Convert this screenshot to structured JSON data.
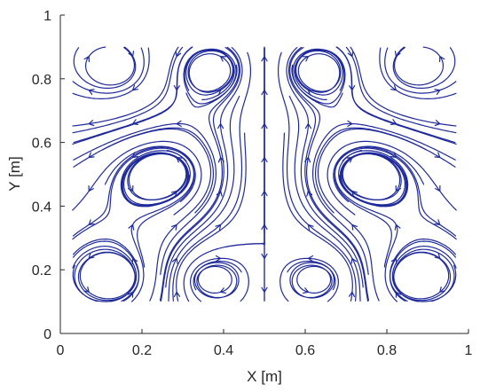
{
  "chart_data": {
    "type": "streamline",
    "title": "",
    "xlabel": "X [m]",
    "ylabel": "Y [m]",
    "xlim": [
      0,
      1
    ],
    "ylim": [
      0,
      1
    ],
    "xticks": [
      0,
      0.2,
      0.4,
      0.6,
      0.8,
      1
    ],
    "yticks": [
      0,
      0.2,
      0.4,
      0.6,
      0.8,
      1
    ],
    "xtick_labels": [
      "0",
      "0.2",
      "0.4",
      "0.6",
      "0.8",
      "1"
    ],
    "ytick_labels": [
      "0",
      "0.2",
      "0.4",
      "0.6",
      "0.8",
      "1"
    ],
    "grid": false,
    "box": "open",
    "color": "#1f2a9a",
    "field_extent": {
      "x": [
        0.03,
        0.97
      ],
      "y": [
        0.1,
        0.9
      ]
    },
    "vortices": [
      {
        "x": 0.13,
        "y": 0.83,
        "strength": -1
      },
      {
        "x": 0.37,
        "y": 0.83,
        "strength": 1
      },
      {
        "x": 0.63,
        "y": 0.83,
        "strength": -1
      },
      {
        "x": 0.87,
        "y": 0.83,
        "strength": 1
      },
      {
        "x": 0.13,
        "y": 0.17,
        "strength": 1
      },
      {
        "x": 0.37,
        "y": 0.17,
        "strength": -1
      },
      {
        "x": 0.63,
        "y": 0.17,
        "strength": 1
      },
      {
        "x": 0.87,
        "y": 0.17,
        "strength": -1
      },
      {
        "x": 0.25,
        "y": 0.5,
        "strength": 1
      },
      {
        "x": 0.75,
        "y": 0.5,
        "strength": -1
      }
    ]
  }
}
